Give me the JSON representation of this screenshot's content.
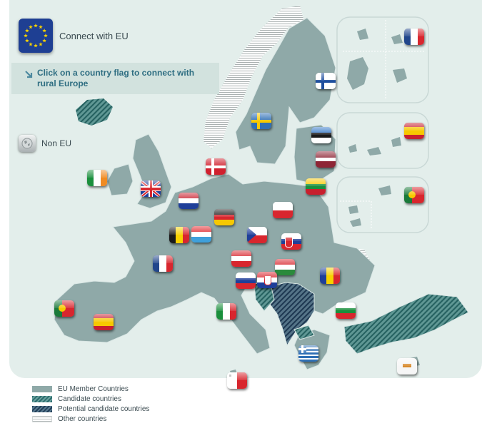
{
  "header": {
    "title": "Connect with EU",
    "logo_icon": "eu-stars-icon"
  },
  "instruction": {
    "text": "Click on a country flag to connect with rural Europe",
    "icon": "arrow-down-right-icon"
  },
  "non_eu": {
    "label": "Non EU",
    "icon": "globe-icon"
  },
  "legend": [
    {
      "label": "EU Member Countries",
      "pattern": "solid"
    },
    {
      "label": "Candidate countries",
      "pattern": "teal-hatched"
    },
    {
      "label": "Potential candidate countries",
      "pattern": "navy-hatched"
    },
    {
      "label": "Other countries",
      "pattern": "horizontal-lines"
    }
  ],
  "colors": {
    "background_panel": "#e3eeeb",
    "eu_member": "#8fa9a8",
    "candidate": "#2c6c6e",
    "potential_candidate": "#223e58",
    "instruction_text": "#2f6e82",
    "eu_blue": "#1e3f93"
  },
  "flags": [
    {
      "country": "France",
      "region": "french-overseas-inset"
    },
    {
      "country": "Finland"
    },
    {
      "country": "Sweden"
    },
    {
      "country": "Estonia"
    },
    {
      "country": "Spain",
      "region": "canary-islands-inset"
    },
    {
      "country": "Latvia"
    },
    {
      "country": "Denmark"
    },
    {
      "country": "Lithuania"
    },
    {
      "country": "Ireland"
    },
    {
      "country": "United Kingdom"
    },
    {
      "country": "Portugal",
      "region": "azores-madeira-inset"
    },
    {
      "country": "Netherlands"
    },
    {
      "country": "Poland"
    },
    {
      "country": "Germany"
    },
    {
      "country": "Belgium"
    },
    {
      "country": "Luxembourg"
    },
    {
      "country": "Czech Republic"
    },
    {
      "country": "Slovakia"
    },
    {
      "country": "France"
    },
    {
      "country": "Austria"
    },
    {
      "country": "Hungary"
    },
    {
      "country": "Romania"
    },
    {
      "country": "Slovenia"
    },
    {
      "country": "Croatia"
    },
    {
      "country": "Portugal"
    },
    {
      "country": "Spain"
    },
    {
      "country": "Italy"
    },
    {
      "country": "Bulgaria"
    },
    {
      "country": "Greece"
    },
    {
      "country": "Cyprus"
    },
    {
      "country": "Malta"
    }
  ]
}
